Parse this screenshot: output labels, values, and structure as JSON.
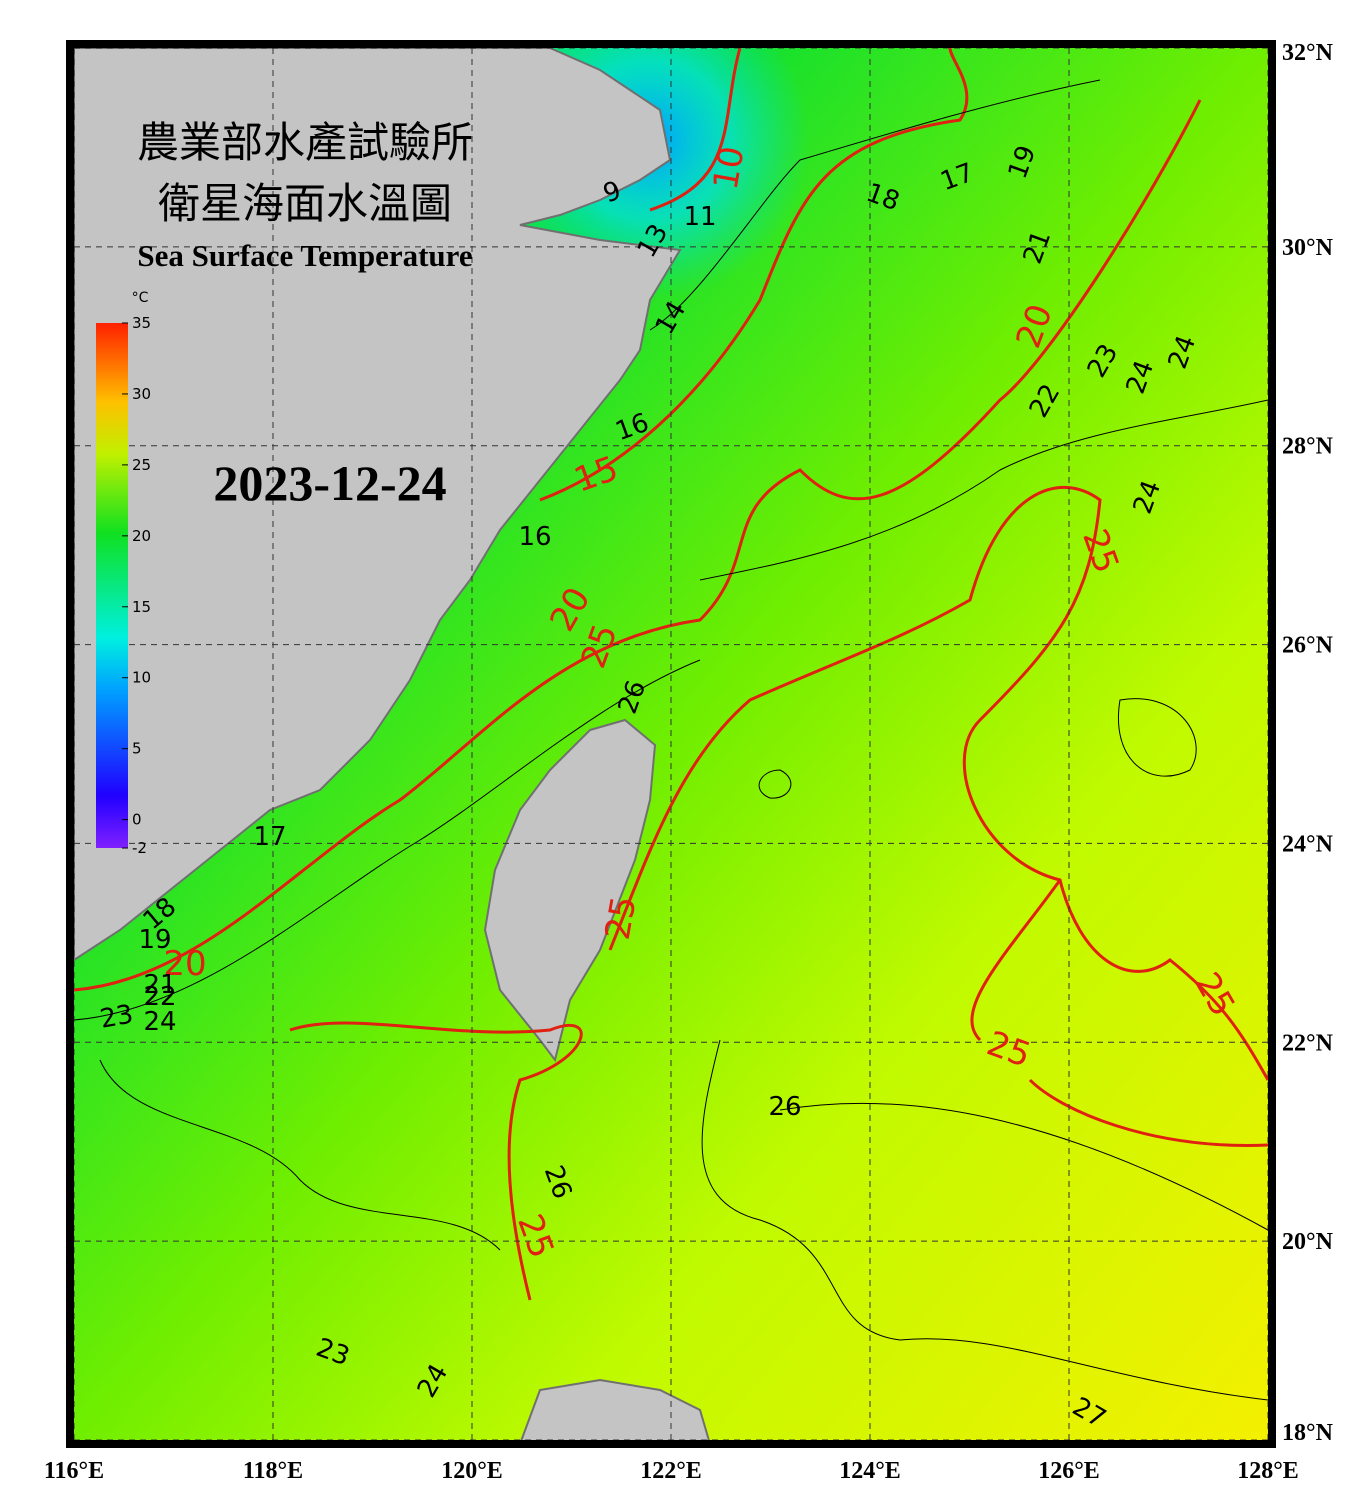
{
  "header": {
    "title_zh_1": "農業部水產試驗所",
    "title_zh_2": "衛星海面水溫圖",
    "title_en": "Sea Surface Temperature",
    "date": "2023-12-24"
  },
  "colorbar": {
    "unit": "°C",
    "ticks": [
      35,
      30,
      25,
      20,
      15,
      10,
      5,
      0,
      -2
    ],
    "range": [
      -2,
      35
    ]
  },
  "map": {
    "lon_ticks": [
      {
        "value": 116,
        "label": "116°E"
      },
      {
        "value": 118,
        "label": "118°E"
      },
      {
        "value": 120,
        "label": "120°E"
      },
      {
        "value": 122,
        "label": "122°E"
      },
      {
        "value": 124,
        "label": "124°E"
      },
      {
        "value": 126,
        "label": "126°E"
      },
      {
        "value": 128,
        "label": "128°E"
      }
    ],
    "lat_ticks": [
      {
        "value": 32,
        "label": "32°N"
      },
      {
        "value": 30,
        "label": "30°N"
      },
      {
        "value": 28,
        "label": "28°N"
      },
      {
        "value": 26,
        "label": "26°N"
      },
      {
        "value": 24,
        "label": "24°N"
      },
      {
        "value": 22,
        "label": "22°N"
      },
      {
        "value": 20,
        "label": "20°N"
      },
      {
        "value": 18,
        "label": "18°N"
      }
    ],
    "red_contour_labels": [
      10,
      15,
      20,
      20,
      20,
      25,
      25,
      25,
      25,
      25,
      25
    ],
    "black_contour_labels": [
      9,
      11,
      13,
      14,
      16,
      16,
      17,
      18,
      19,
      21,
      22,
      23,
      24,
      24,
      24,
      26,
      26,
      26,
      23,
      24,
      27,
      17,
      18,
      19,
      21,
      22,
      23,
      24
    ]
  }
}
